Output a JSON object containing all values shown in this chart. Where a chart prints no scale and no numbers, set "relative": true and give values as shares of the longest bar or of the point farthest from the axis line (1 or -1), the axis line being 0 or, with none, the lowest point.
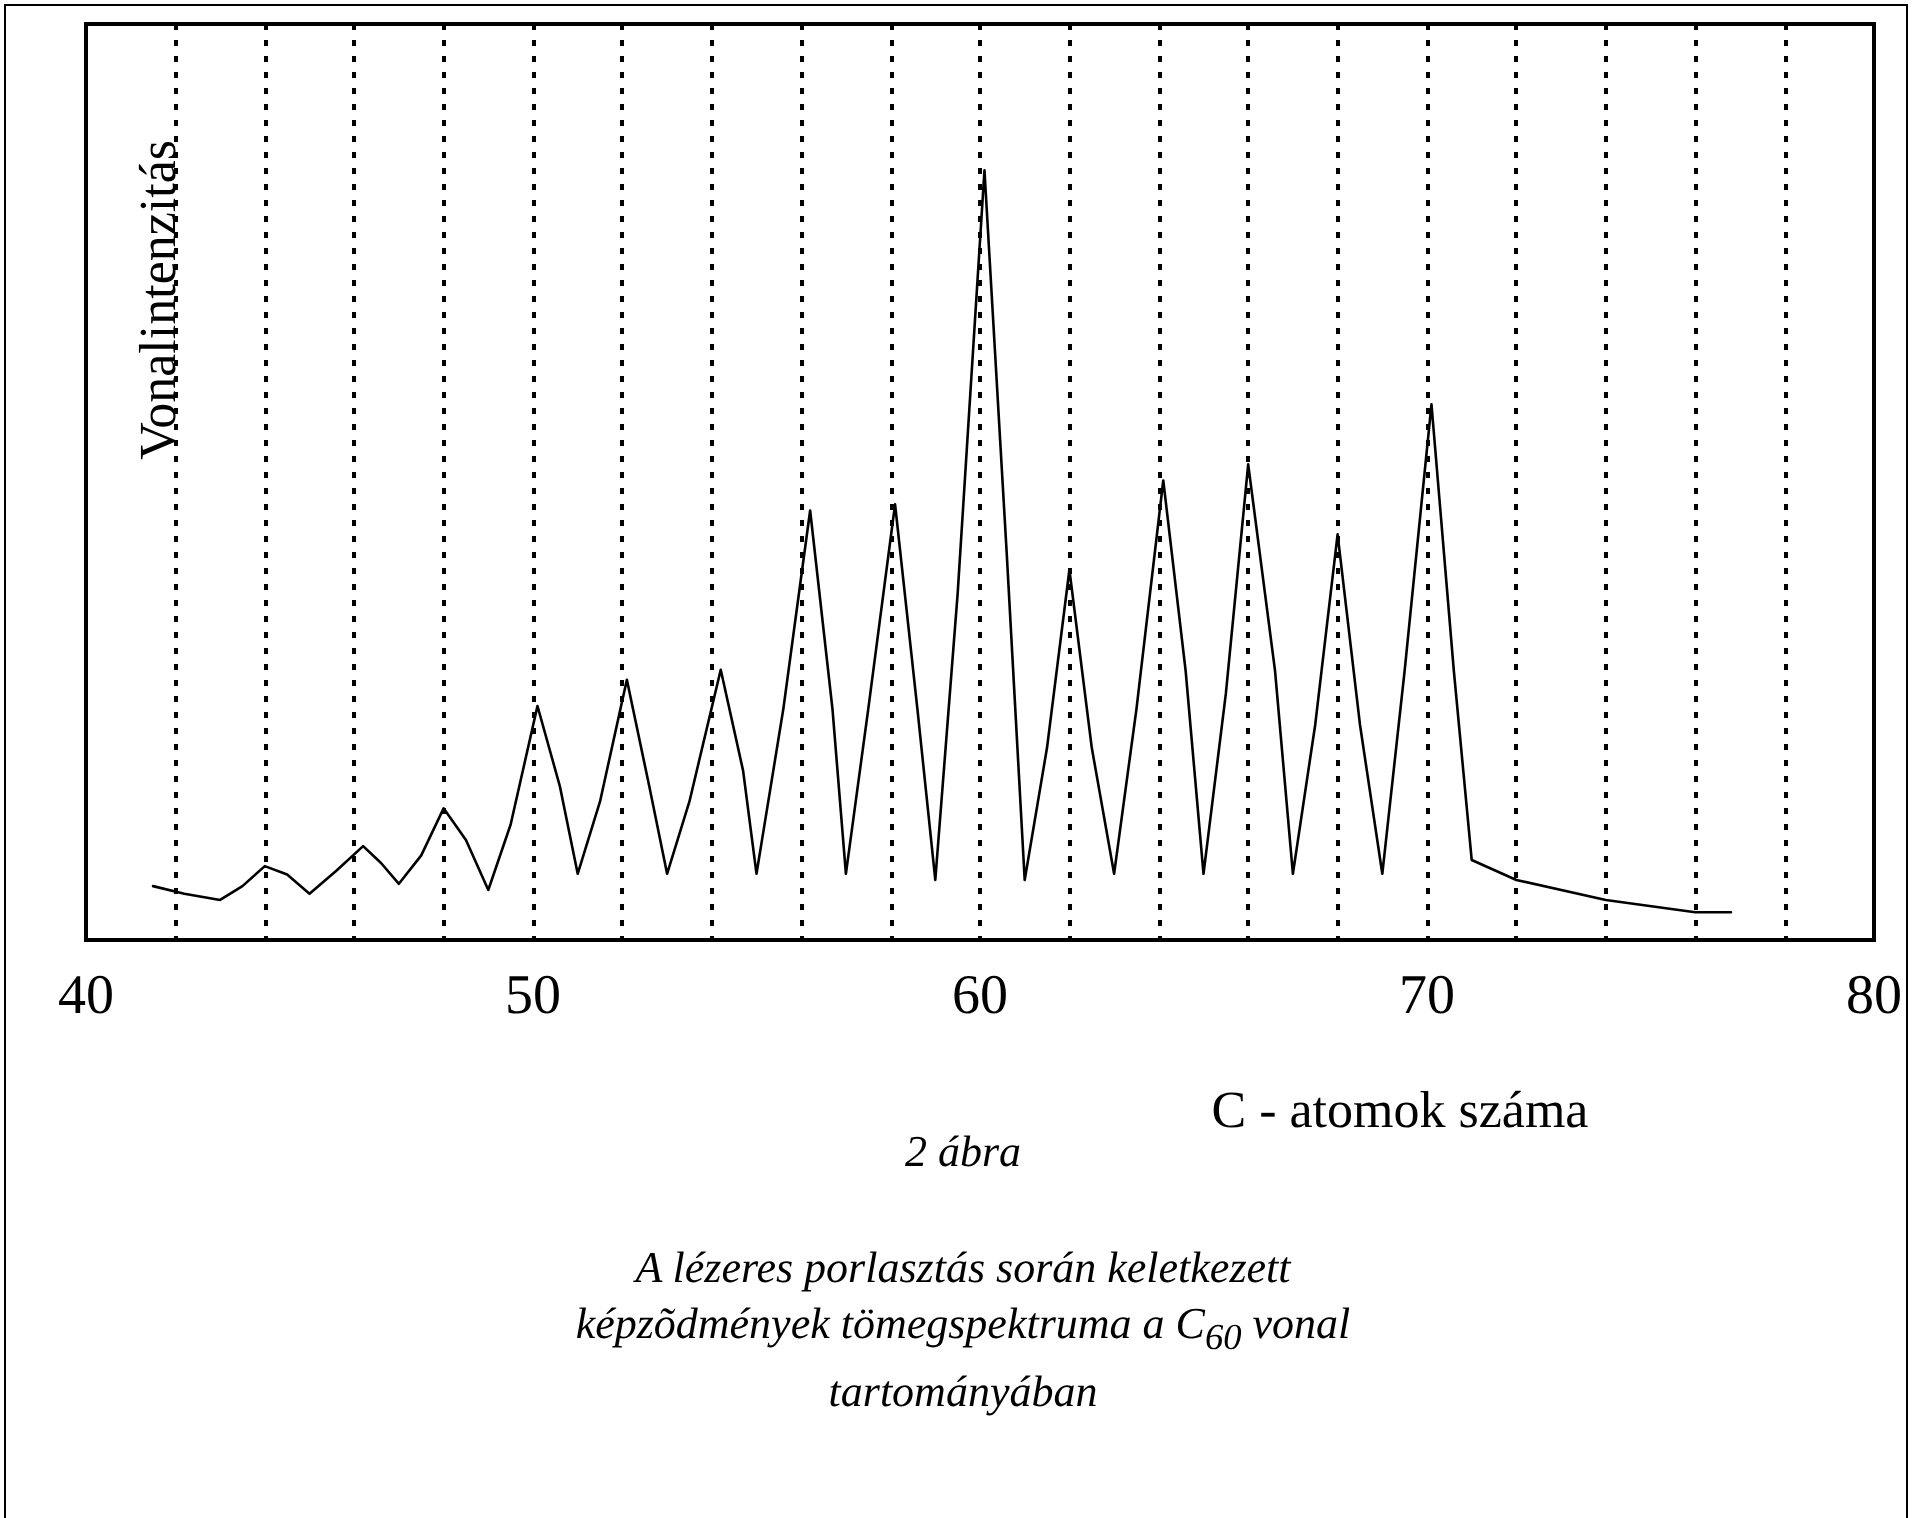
{
  "chart_data": {
    "type": "line",
    "relative": true,
    "xlabel": "C - atomok száma",
    "ylabel": "Vonalintenzitás",
    "annotations": [
      "2 ábra",
      "A lézeres porlasztás során keletkezett képzõdmények tömegspektruma a C$_{60}$ vonal tartományában"
    ],
    "xlim": [
      40,
      80
    ],
    "xticks": [
      40,
      {
        "value": 42,
        "label": null
      },
      {
        "value": 44,
        "label": null
      },
      {
        "value": 46,
        "label": null
      },
      {
        "value": 48,
        "label": null
      },
      50,
      {
        "value": 52,
        "label": null
      },
      {
        "value": 54,
        "label": null
      },
      {
        "value": 56,
        "label": null
      },
      {
        "value": 58,
        "label": null
      },
      60,
      {
        "value": 62,
        "label": null
      },
      {
        "value": 64,
        "label": null
      },
      {
        "value": 66,
        "label": null
      },
      {
        "value": 68,
        "label": null
      },
      70,
      {
        "value": 72,
        "label": null
      },
      {
        "value": 74,
        "label": null
      },
      {
        "value": 76,
        "label": null
      },
      {
        "value": 78,
        "label": null
      },
      80
    ],
    "grid": "x",
    "marker": "none",
    "line_style": "solid",
    "series": [
      {
        "color": "#000000",
        "x": [
          41.5,
          42.2,
          43.0,
          43.5,
          44.0,
          44.5,
          45.0,
          45.6,
          46.2,
          46.6,
          47.0,
          47.5,
          48.0,
          48.5,
          49.0,
          49.5,
          50.1,
          50.6,
          51.0,
          51.5,
          52.1,
          52.6,
          53.0,
          53.5,
          54.2,
          54.7,
          55.0,
          55.6,
          56.2,
          56.7,
          57.0,
          57.5,
          58.1,
          58.6,
          59.0,
          59.5,
          60.1,
          60.6,
          61.0,
          61.5,
          62.0,
          62.5,
          63.0,
          63.5,
          64.1,
          64.6,
          65.0,
          65.5,
          66.0,
          66.6,
          67.0,
          67.5,
          68.0,
          68.5,
          69.0,
          69.5,
          70.1,
          70.6,
          71.0,
          72.0,
          74.0,
          76.0,
          76.8
        ],
        "values": [
          0.07,
          0.06,
          0.052,
          0.07,
          0.096,
          0.085,
          0.06,
          0.09,
          0.122,
          0.1,
          0.073,
          0.11,
          0.171,
          0.13,
          0.065,
          0.15,
          0.304,
          0.2,
          0.086,
          0.18,
          0.338,
          0.2,
          0.086,
          0.18,
          0.351,
          0.22,
          0.086,
          0.3,
          0.558,
          0.3,
          0.086,
          0.3,
          0.566,
          0.3,
          0.078,
          0.45,
          1,
          0.5,
          0.078,
          0.25,
          0.481,
          0.25,
          0.086,
          0.3,
          0.597,
          0.35,
          0.086,
          0.32,
          0.618,
          0.35,
          0.086,
          0.28,
          0.527,
          0.28,
          0.086,
          0.35,
          0.696,
          0.35,
          0.104,
          0.078,
          0.052,
          0.036,
          0.036
        ]
      }
    ]
  }
}
